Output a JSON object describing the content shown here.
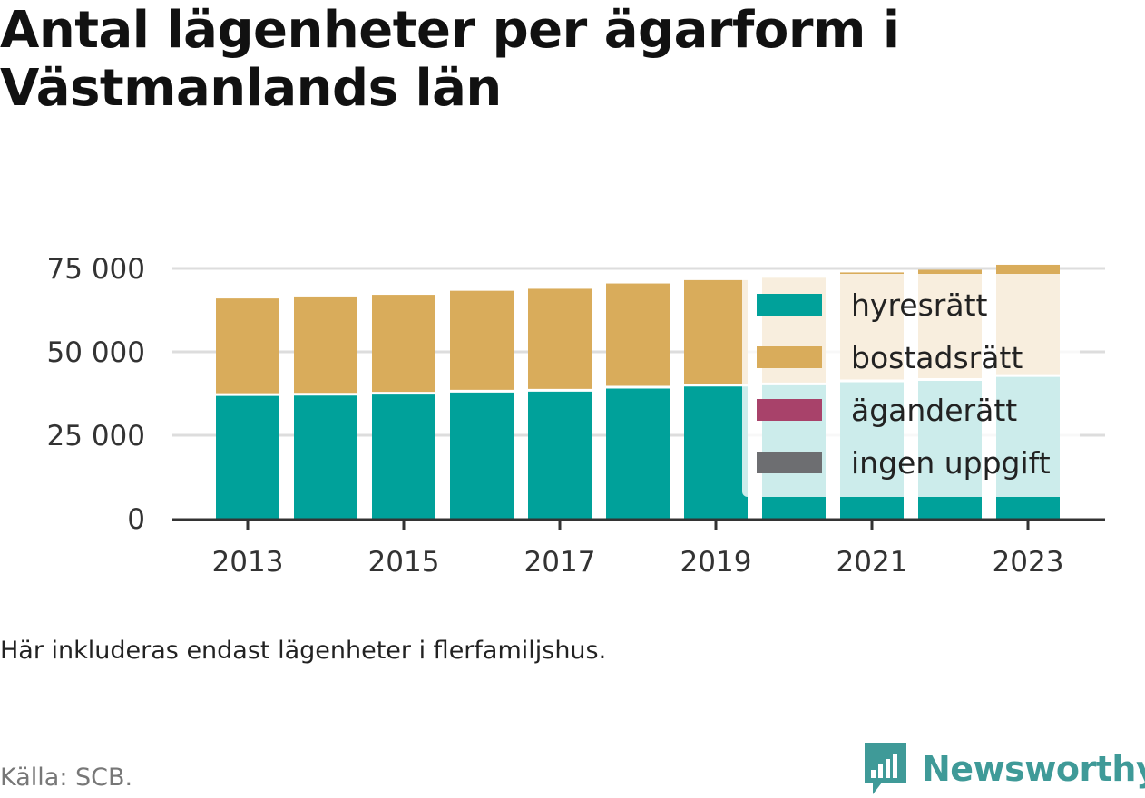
{
  "title": "Antal lägenheter per ägarform i Västmanlands län",
  "note": "Här inkluderas endast lägenheter i flerfamiljshus.",
  "source": "Källa: SCB.",
  "brand": {
    "name": "Newsworthy",
    "icon": "newsworthy-logo-icon",
    "color": "#3f9a98"
  },
  "chart_data": {
    "type": "bar",
    "stacked": true,
    "categories": [
      "2013",
      "2014",
      "2015",
      "2016",
      "2017",
      "2018",
      "2019",
      "2020",
      "2021",
      "2022",
      "2023"
    ],
    "x_tick_labels": [
      "2013",
      "2015",
      "2017",
      "2019",
      "2021",
      "2023"
    ],
    "y_tick_labels": [
      "0",
      "25 000",
      "50 000",
      "75 000"
    ],
    "y_ticks": [
      0,
      25000,
      50000,
      75000
    ],
    "ylim": [
      0,
      76000
    ],
    "grid": true,
    "legend_position": "top-right",
    "series": [
      {
        "name": "hyresrätt",
        "color": "#00a19a",
        "values": [
          37200,
          37300,
          37600,
          38200,
          38500,
          39400,
          40000,
          40400,
          41300,
          41700,
          42900
        ]
      },
      {
        "name": "bostadsrätt",
        "color": "#d9ac5b",
        "values": [
          28800,
          29300,
          29500,
          30100,
          30400,
          31100,
          31500,
          31800,
          32500,
          32900,
          33200
        ]
      },
      {
        "name": "äganderätt",
        "color": "#a8426a",
        "values": [
          0,
          0,
          0,
          0,
          0,
          0,
          0,
          0,
          0,
          0,
          0
        ]
      },
      {
        "name": "ingen uppgift",
        "color": "#6d6e71",
        "values": [
          0,
          0,
          0,
          0,
          0,
          0,
          0,
          0,
          0,
          0,
          0
        ]
      }
    ]
  }
}
